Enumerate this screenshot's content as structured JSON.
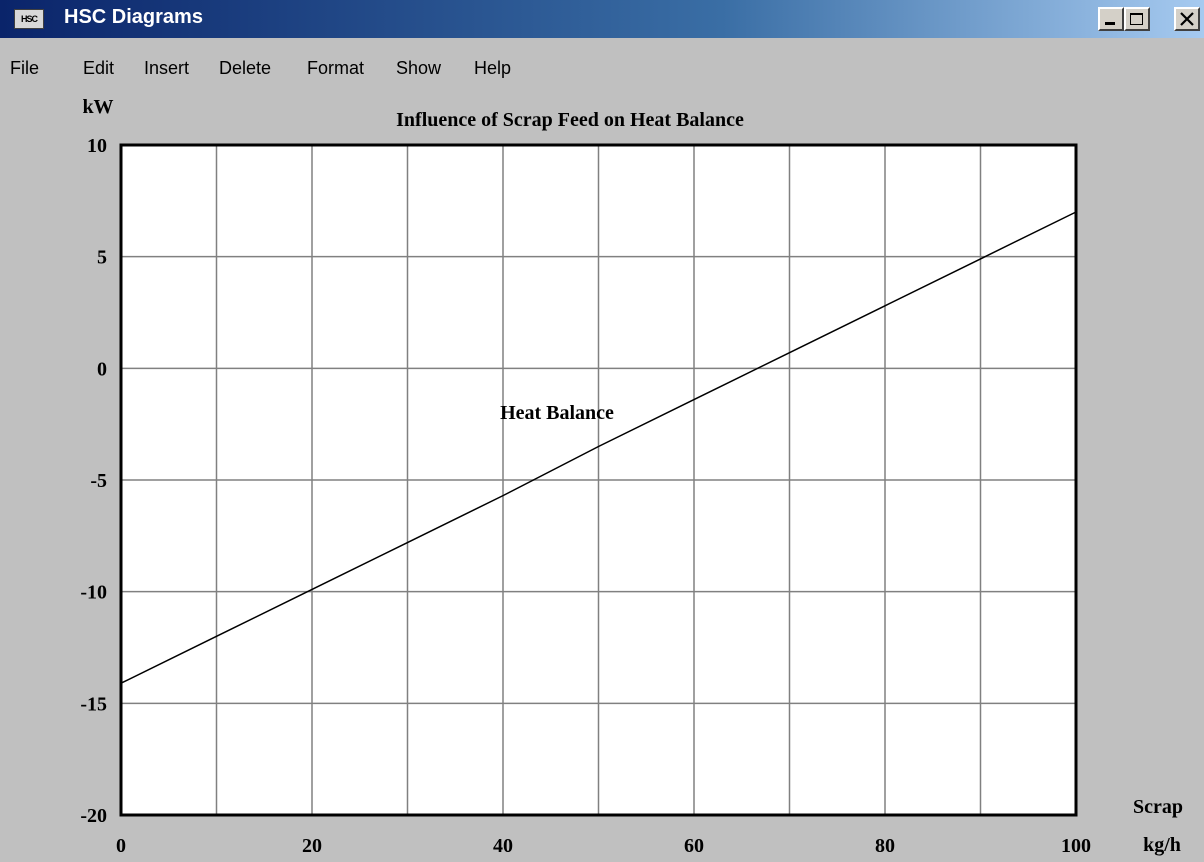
{
  "window": {
    "title": "HSC Diagrams",
    "icon_label": "HSC",
    "controls": [
      "minimize-icon",
      "maximize-icon",
      "close-icon"
    ]
  },
  "menu": {
    "items": [
      "File",
      "Edit",
      "Insert",
      "Delete",
      "Format",
      "Show",
      "Help"
    ]
  },
  "colors": {
    "titlebar_start": "#0a246a",
    "titlebar_end": "#a6caf0",
    "background": "#c0c0c0",
    "plot_background": "#ffffff",
    "grid": "#808080"
  },
  "chart_data": {
    "type": "line",
    "title": "Influence of Scrap Feed on Heat Balance",
    "ylabel": "kW",
    "xlabel_line1": "Scrap",
    "xlabel_line2": "kg/h",
    "xlim": [
      0,
      100
    ],
    "ylim": [
      -20,
      10
    ],
    "xticks": [
      0,
      20,
      40,
      60,
      80,
      100
    ],
    "yticks": [
      10,
      5,
      0,
      -5,
      -10,
      -15,
      -20
    ],
    "grid": true,
    "series": [
      {
        "name": "Heat Balance",
        "x": [
          0,
          10,
          20,
          30,
          40,
          50,
          60,
          70,
          80,
          90,
          100
        ],
        "y": [
          -14.1,
          -12.0,
          -9.9,
          -7.8,
          -5.7,
          -3.5,
          -1.4,
          0.7,
          2.8,
          4.9,
          7.0
        ]
      }
    ]
  }
}
